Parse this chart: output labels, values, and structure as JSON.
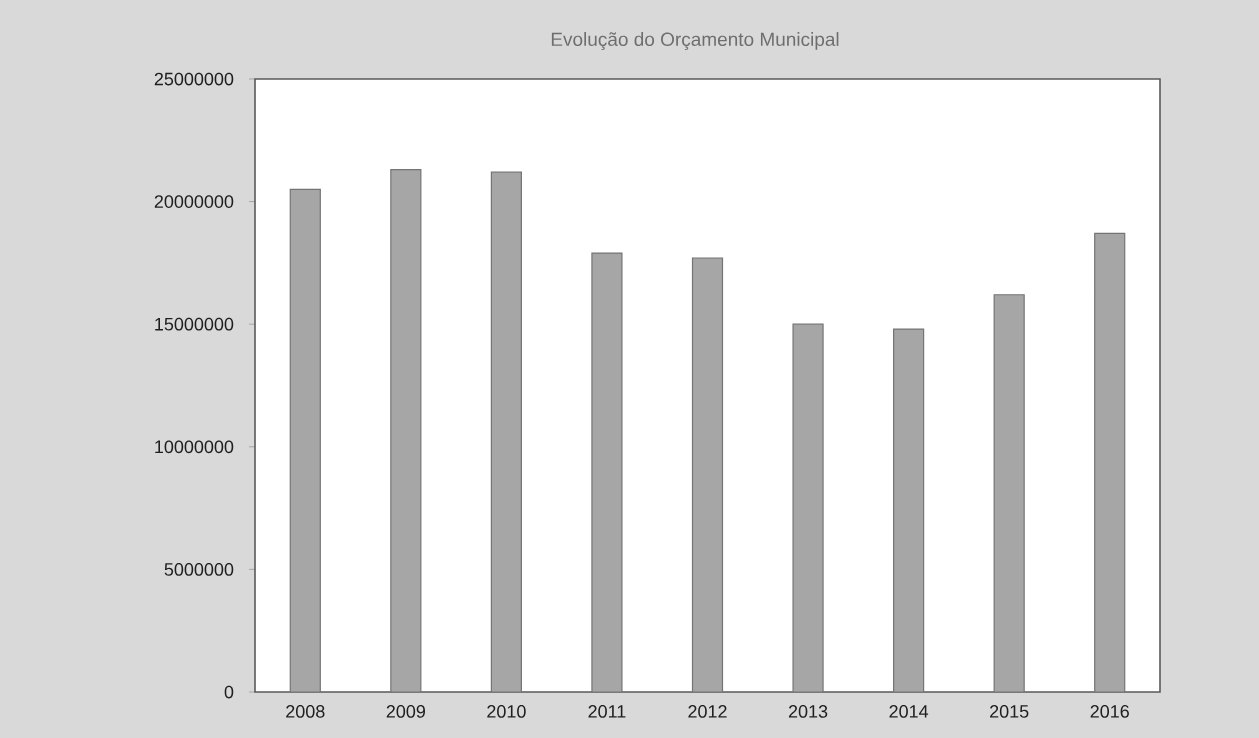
{
  "chart_data": {
    "type": "bar",
    "title": "Evolução do Orçamento Municipal",
    "categories": [
      "2008",
      "2009",
      "2010",
      "2011",
      "2012",
      "2013",
      "2014",
      "2015",
      "2016"
    ],
    "values": [
      20500000,
      21300000,
      21200000,
      17900000,
      17700000,
      15000000,
      14800000,
      16200000,
      18700000
    ],
    "color": "#a6a6a6",
    "ylim": [
      0,
      25000000
    ],
    "yticks": [
      0,
      5000000,
      10000000,
      15000000,
      20000000,
      25000000
    ]
  }
}
